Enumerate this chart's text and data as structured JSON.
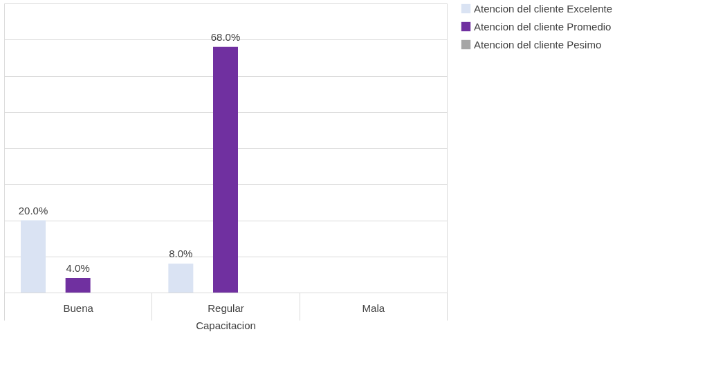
{
  "chart_data": {
    "type": "bar",
    "xlabel": "Capacitacion",
    "categories": [
      "Buena",
      "Regular",
      "Mala"
    ],
    "series": [
      {
        "name": "Atencion del cliente Excelente",
        "color": "#dae3f3",
        "values": [
          20,
          8,
          null
        ],
        "value_labels": [
          "20.0%",
          "8.0%",
          null
        ]
      },
      {
        "name": "Atencion del cliente Promedio",
        "color": "#7030a0",
        "values": [
          4,
          68,
          null
        ],
        "value_labels": [
          "4.0%",
          "68.0%",
          null
        ]
      },
      {
        "name": "Atencion del cliente Pesimo",
        "color": "#a5a5a5",
        "values": [
          null,
          null,
          null
        ],
        "value_labels": [
          null,
          null,
          null
        ]
      }
    ],
    "ylim": [
      0,
      80
    ],
    "yticks": [
      {
        "value": 0,
        "label": null
      },
      {
        "value": 10,
        "label": null
      },
      {
        "value": 20,
        "label": null
      },
      {
        "value": 30,
        "label": null
      },
      {
        "value": 40,
        "label": null
      },
      {
        "value": 50,
        "label": null
      },
      {
        "value": 60,
        "label": null
      },
      {
        "value": 70,
        "label": null
      },
      {
        "value": 80,
        "label": null
      }
    ],
    "tick_labels": "x",
    "grid": "y",
    "legend": "right"
  }
}
